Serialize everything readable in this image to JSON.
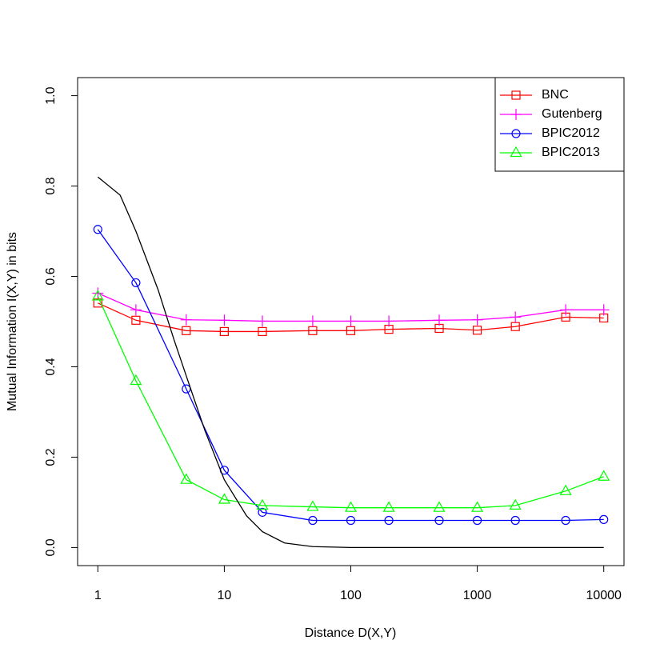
{
  "chart_data": {
    "type": "line",
    "xlabel": "Distance D(X,Y)",
    "ylabel": "Mutual Information I(X,Y) in bits",
    "xscale": "log",
    "xlim": [
      0.6918,
      14454
    ],
    "ylim": [
      -0.04,
      1.04
    ],
    "xticks": [
      1,
      10,
      100,
      1000,
      10000
    ],
    "yticks": [
      {
        "value": 0,
        "label": "0.0"
      },
      0.2,
      0.4,
      0.6,
      0.8,
      {
        "value": 1,
        "label": "1.0"
      }
    ],
    "legend": "top-right",
    "series": [
      {
        "name": "BNC",
        "color": "#ff0000",
        "marker": "square",
        "x": [
          1,
          2,
          5,
          10,
          20,
          50,
          100,
          200,
          500,
          1000,
          2000,
          5000,
          10000
        ],
        "values": [
          0.541,
          0.503,
          0.48,
          0.478,
          0.478,
          0.48,
          0.48,
          0.483,
          0.485,
          0.481,
          0.489,
          0.51,
          0.508
        ]
      },
      {
        "name": "Gutenberg",
        "color": "#ff00ff",
        "marker": "plus",
        "x": [
          1,
          2,
          5,
          10,
          20,
          50,
          100,
          200,
          500,
          1000,
          2000,
          5000,
          10000
        ],
        "values": [
          0.563,
          0.526,
          0.504,
          0.503,
          0.501,
          0.501,
          0.501,
          0.501,
          0.503,
          0.504,
          0.51,
          0.526,
          0.526
        ]
      },
      {
        "name": "BPIC2012",
        "color": "#0000ff",
        "marker": "circle",
        "x": [
          1,
          2,
          5,
          10,
          20,
          50,
          100,
          200,
          500,
          1000,
          2000,
          5000,
          10000
        ],
        "values": [
          0.704,
          0.586,
          0.351,
          0.171,
          0.078,
          0.06,
          0.06,
          0.06,
          0.06,
          0.06,
          0.06,
          0.06,
          0.062
        ]
      },
      {
        "name": "BPIC2013",
        "color": "#00ff00",
        "marker": "triangle",
        "x": [
          1,
          2,
          5,
          10,
          20,
          50,
          100,
          200,
          500,
          1000,
          2000,
          5000,
          10000
        ],
        "values": [
          0.556,
          0.369,
          0.15,
          0.106,
          0.093,
          0.09,
          0.088,
          0.088,
          0.088,
          0.088,
          0.093,
          0.125,
          0.157
        ]
      },
      {
        "color": "#000000",
        "marker": "none",
        "x": [
          1,
          1.5,
          2,
          3,
          4,
          5,
          7,
          10,
          15,
          20,
          30,
          50,
          100,
          1000,
          10000
        ],
        "values": [
          0.82,
          0.78,
          0.7,
          0.57,
          0.46,
          0.38,
          0.26,
          0.15,
          0.07,
          0.035,
          0.01,
          0.002,
          0,
          0,
          0
        ]
      }
    ]
  }
}
